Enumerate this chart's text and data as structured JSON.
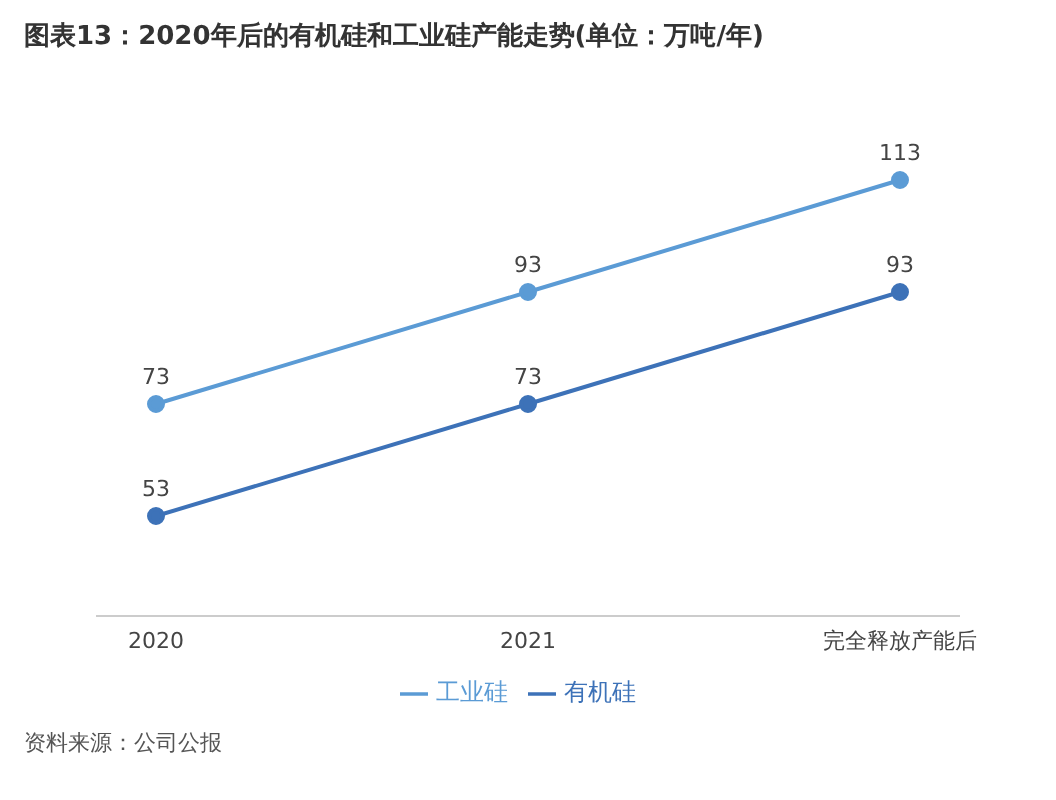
{
  "chart_data": {
    "type": "line",
    "title": "图表13：2020年后的有机硅和工业硅产能走势(单位：万吨/年)",
    "categories": [
      "2020",
      "2021",
      "完全释放产能后"
    ],
    "series": [
      {
        "name": "有机硅",
        "color": "#3d72b8",
        "values": [
          53,
          73,
          93
        ]
      },
      {
        "name": "工业硅",
        "color": "#5b9bd5",
        "values": [
          73,
          93,
          113
        ]
      }
    ],
    "data_labels": true,
    "marker": "circle",
    "legend": "bottom",
    "grid": false,
    "annotations": [
      "资料来源：公司公报"
    ]
  }
}
